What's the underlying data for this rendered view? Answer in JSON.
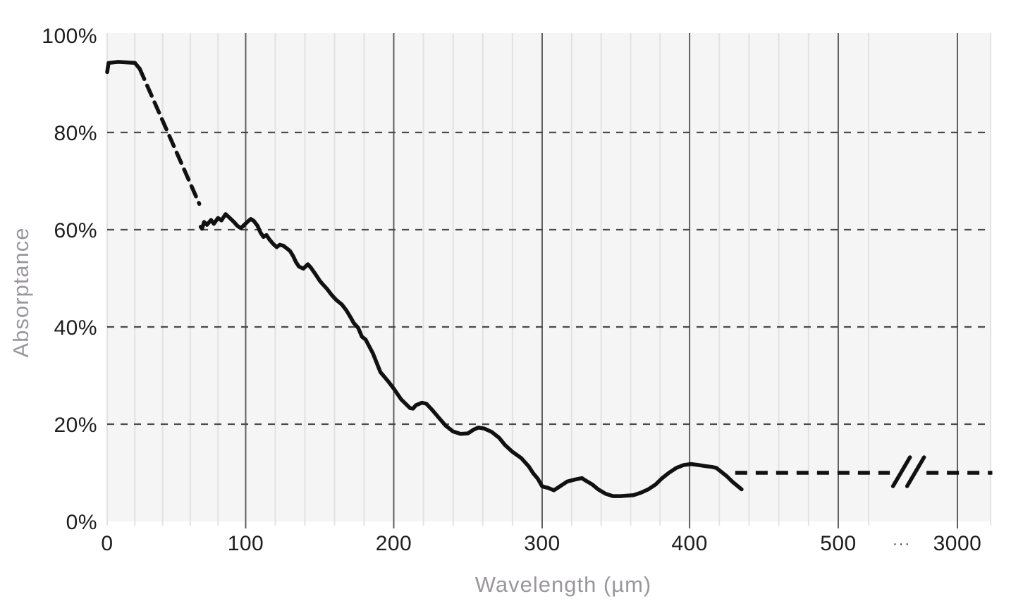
{
  "chart_data": {
    "type": "line",
    "title": "",
    "xlabel": "Wavelength (µm)",
    "ylabel": "Absorptance",
    "x_unit": "µm",
    "y_unit": "percent absorptance",
    "ylim": [
      0,
      100
    ],
    "grid": {
      "vertical_minor_step_um": 20,
      "horizontal_dashed_pct": [
        20,
        40,
        60,
        80
      ],
      "extra_minor_f": [
        0.862,
        1.0
      ],
      "edge_minor_f": [
        0.0
      ]
    },
    "axis_break": {
      "between": [
        500,
        3000
      ],
      "ellipsis_label": "···"
    },
    "colors": {
      "line": "#111111",
      "plot_bg": "#f5f5f5",
      "grid_minor": "#e2e2e2",
      "grid_major": "#5f5f5f",
      "grid_dashed": "#4a4a4a",
      "tick_text": "#1e1e1e",
      "axis_title_text": "#9a979c"
    },
    "x_ticks": [
      {
        "label": "0",
        "um": 0,
        "f": 0.0,
        "major": false
      },
      {
        "label": "100",
        "um": 100,
        "f": 0.1568,
        "major": true
      },
      {
        "label": "200",
        "um": 200,
        "f": 0.3244,
        "major": true
      },
      {
        "label": "300",
        "um": 300,
        "f": 0.4924,
        "major": true
      },
      {
        "label": "400",
        "um": 400,
        "f": 0.6593,
        "major": true
      },
      {
        "label": "500",
        "um": 500,
        "f": 0.8276,
        "major": true
      },
      {
        "label": "···",
        "f": 0.8995,
        "ellipsis": true
      },
      {
        "label": "3000",
        "um": 3000,
        "f": 0.9625,
        "major": true
      }
    ],
    "y_ticks": [
      {
        "label": "0%",
        "pct": 0
      },
      {
        "label": "20%",
        "pct": 20
      },
      {
        "label": "40%",
        "pct": 40
      },
      {
        "label": "60%",
        "pct": 60
      },
      {
        "label": "80%",
        "pct": 80
      },
      {
        "label": "100%",
        "pct": 100
      }
    ],
    "segments": [
      {
        "name": "initial-solid",
        "style": "solid",
        "points": [
          [
            0,
            92.4
          ],
          [
            1,
            94.3
          ],
          [
            8,
            94.5
          ],
          [
            20,
            94.3
          ],
          [
            23.5,
            93.1
          ]
        ]
      },
      {
        "name": "initial-dashed",
        "style": "dashed",
        "points": [
          [
            23.5,
            93.1
          ],
          [
            66.5,
            65.3
          ]
        ]
      },
      {
        "name": "main-solid",
        "style": "solid",
        "points": [
          [
            67.5,
            60.6
          ],
          [
            68.5,
            60.2
          ],
          [
            70,
            61.6
          ],
          [
            72,
            61.0
          ],
          [
            75,
            62.0
          ],
          [
            77,
            61.2
          ],
          [
            80,
            62.4
          ],
          [
            82.5,
            61.9
          ],
          [
            85.5,
            63.2
          ],
          [
            88.5,
            62.4
          ],
          [
            91.5,
            61.6
          ],
          [
            94,
            60.8
          ],
          [
            96.5,
            60.3
          ],
          [
            99,
            61.0
          ],
          [
            101.5,
            61.7
          ],
          [
            103.5,
            62.2
          ],
          [
            105.5,
            61.8
          ],
          [
            108,
            60.8
          ],
          [
            110,
            59.4
          ],
          [
            112,
            58.5
          ],
          [
            114,
            58.9
          ],
          [
            116,
            58.0
          ],
          [
            118.5,
            57.1
          ],
          [
            121,
            56.4
          ],
          [
            123,
            56.9
          ],
          [
            125.5,
            56.7
          ],
          [
            128,
            56.1
          ],
          [
            130,
            55.6
          ],
          [
            132,
            54.6
          ],
          [
            134,
            53.3
          ],
          [
            136,
            52.4
          ],
          [
            139,
            52.0
          ],
          [
            142,
            52.9
          ],
          [
            144,
            52.2
          ],
          [
            147,
            50.9
          ],
          [
            150,
            49.5
          ],
          [
            152,
            48.8
          ],
          [
            155,
            47.8
          ],
          [
            158,
            46.6
          ],
          [
            161,
            45.6
          ],
          [
            165,
            44.6
          ],
          [
            168,
            43.4
          ],
          [
            171,
            41.9
          ],
          [
            173,
            40.8
          ],
          [
            176,
            39.8
          ],
          [
            178.5,
            38.0
          ],
          [
            181,
            37.4
          ],
          [
            186,
            34.5
          ],
          [
            191,
            30.7
          ],
          [
            196,
            28.9
          ],
          [
            200,
            27.3
          ],
          [
            205,
            25.1
          ],
          [
            211,
            23.3
          ],
          [
            213,
            23.2
          ],
          [
            215,
            23.9
          ],
          [
            219,
            24.4
          ],
          [
            222,
            24.2
          ],
          [
            226,
            22.9
          ],
          [
            231,
            21.1
          ],
          [
            235,
            19.7
          ],
          [
            240,
            18.5
          ],
          [
            245,
            18.0
          ],
          [
            250,
            18.1
          ],
          [
            254,
            18.9
          ],
          [
            257,
            19.3
          ],
          [
            261,
            19.1
          ],
          [
            266,
            18.4
          ],
          [
            271,
            17.2
          ],
          [
            275,
            15.7
          ],
          [
            280,
            14.3
          ],
          [
            286,
            13.0
          ],
          [
            291,
            11.3
          ],
          [
            294,
            9.9
          ],
          [
            297,
            8.8
          ],
          [
            300,
            7.2
          ],
          [
            304,
            6.9
          ],
          [
            308,
            6.4
          ],
          [
            312,
            7.2
          ],
          [
            317,
            8.2
          ],
          [
            322,
            8.6
          ],
          [
            327,
            8.9
          ],
          [
            329,
            8.5
          ],
          [
            334,
            7.6
          ],
          [
            338,
            6.6
          ],
          [
            343,
            5.7
          ],
          [
            348,
            5.2
          ],
          [
            353,
            5.2
          ],
          [
            358,
            5.3
          ],
          [
            362,
            5.4
          ],
          [
            367,
            5.9
          ],
          [
            372,
            6.6
          ],
          [
            377,
            7.6
          ],
          [
            381,
            8.8
          ],
          [
            386,
            10.0
          ],
          [
            391,
            11.0
          ],
          [
            396,
            11.6
          ],
          [
            401,
            11.8
          ],
          [
            406,
            11.6
          ],
          [
            410,
            11.4
          ],
          [
            415,
            11.2
          ],
          [
            418,
            11.0
          ],
          [
            425,
            9.3
          ],
          [
            429,
            8.1
          ],
          [
            435,
            6.6
          ]
        ]
      }
    ],
    "dashed_tail": {
      "pct": 10,
      "f_start": 0.711,
      "f_gap_start": 0.886,
      "f_gap_end": 0.9275,
      "f_end": 1.002,
      "break_marks": true,
      "note": "dashed continuation at ~10% absorptance from ~430 µm out past 3000 µm, interrupted by axis-break slashes"
    }
  }
}
